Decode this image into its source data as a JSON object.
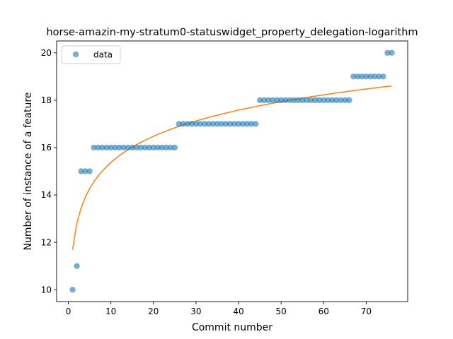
{
  "chart_data": {
    "type": "scatter",
    "title": "horse-amazin-my-stratum0-statuswidget_property_delegation-logarithm",
    "xlabel": "Commit number",
    "ylabel": "Number of instance of a feature",
    "xlim": [
      -2.75,
      79.75
    ],
    "ylim": [
      9.5,
      20.5
    ],
    "xticks": [
      0,
      10,
      20,
      30,
      40,
      50,
      60,
      70
    ],
    "yticks": [
      10,
      12,
      14,
      16,
      18,
      20
    ],
    "legend": {
      "position": "top-left",
      "entries": [
        "data"
      ]
    },
    "colors": {
      "data": "#1f77b4",
      "fit": "#ff7f0e"
    },
    "series": [
      {
        "name": "data",
        "kind": "scatter",
        "x": [
          1,
          2,
          3,
          4,
          5,
          6,
          7,
          8,
          9,
          10,
          11,
          12,
          13,
          14,
          15,
          16,
          17,
          18,
          19,
          20,
          21,
          22,
          23,
          24,
          25,
          26,
          27,
          28,
          29,
          30,
          31,
          32,
          33,
          34,
          35,
          36,
          37,
          38,
          39,
          40,
          41,
          42,
          43,
          44,
          45,
          46,
          47,
          48,
          49,
          50,
          51,
          52,
          53,
          54,
          55,
          56,
          57,
          58,
          59,
          60,
          61,
          62,
          63,
          64,
          65,
          66,
          67,
          68,
          69,
          70,
          71,
          72,
          73,
          74,
          75,
          76
        ],
        "y": [
          10,
          11,
          15,
          15,
          15,
          16,
          16,
          16,
          16,
          16,
          16,
          16,
          16,
          16,
          16,
          16,
          16,
          16,
          16,
          16,
          16,
          16,
          16,
          16,
          16,
          17,
          17,
          17,
          17,
          17,
          17,
          17,
          17,
          17,
          17,
          17,
          17,
          17,
          17,
          17,
          17,
          17,
          17,
          17,
          18,
          18,
          18,
          18,
          18,
          18,
          18,
          18,
          18,
          18,
          18,
          18,
          18,
          18,
          18,
          18,
          18,
          18,
          18,
          18,
          18,
          18,
          19,
          19,
          19,
          19,
          19,
          19,
          19,
          19,
          20,
          20
        ]
      },
      {
        "kind": "line",
        "model": "logarithmic fit",
        "x": [
          1,
          76
        ],
        "coef": {
          "a": 11.7,
          "b": 1.594
        }
      }
    ]
  }
}
